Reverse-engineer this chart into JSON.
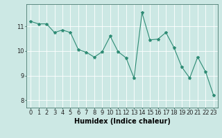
{
  "x": [
    0,
    1,
    2,
    3,
    4,
    5,
    6,
    7,
    8,
    9,
    10,
    11,
    12,
    13,
    14,
    15,
    16,
    17,
    18,
    19,
    20,
    21,
    22,
    23
  ],
  "y": [
    11.2,
    11.1,
    11.1,
    10.75,
    10.85,
    10.75,
    10.05,
    9.95,
    9.75,
    9.97,
    10.6,
    9.97,
    9.72,
    8.9,
    11.55,
    10.45,
    10.48,
    10.75,
    10.15,
    9.35,
    8.9,
    9.75,
    9.15,
    8.2
  ],
  "line_color": "#2e8b74",
  "marker": "*",
  "marker_size": 3,
  "bg_color": "#cce8e4",
  "grid_color": "#ffffff",
  "xlabel": "Humidex (Indice chaleur)",
  "xlabel_fontsize": 7,
  "tick_fontsize": 6,
  "yticks": [
    8,
    9,
    10,
    11
  ],
  "ylim": [
    7.7,
    11.9
  ],
  "xlim": [
    -0.5,
    23.5
  ],
  "xticks": [
    0,
    1,
    2,
    3,
    4,
    5,
    6,
    7,
    8,
    9,
    10,
    11,
    12,
    13,
    14,
    15,
    16,
    17,
    18,
    19,
    20,
    21,
    22,
    23
  ]
}
